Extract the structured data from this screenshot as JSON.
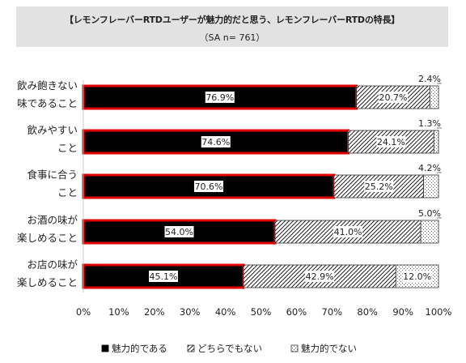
{
  "header": {
    "title": "【レモンフレーバーRTDユーザーが魅力的だと思う、レモンフレーバーRTDの特長】",
    "subtitle": "（SA n= 761）"
  },
  "chart_data": {
    "type": "bar",
    "orientation": "horizontal",
    "stacked": true,
    "title": "【レモンフレーバーRTDユーザーが魅力的だと思う、レモンフレーバーRTDの特長】",
    "subtitle": "（SA n= 761）",
    "categories": [
      [
        "飲み飽きない",
        "味であること"
      ],
      [
        "飲みやすい",
        "こと"
      ],
      [
        "食事に合う",
        "こと"
      ],
      [
        "お酒の味が",
        "楽しめること"
      ],
      [
        "お店の味が",
        "楽しめること"
      ]
    ],
    "series": [
      {
        "name": "魅力的である",
        "values": [
          76.9,
          74.6,
          70.6,
          54.0,
          45.1
        ],
        "labels": [
          "76.9%",
          "74.6%",
          "70.6%",
          "54.0%",
          "45.1%"
        ],
        "color": "#000000",
        "highlight": "#e00000",
        "pattern": "solid"
      },
      {
        "name": "どちらでもない",
        "values": [
          20.7,
          24.1,
          25.2,
          41.0,
          42.9
        ],
        "labels": [
          "20.7%",
          "24.1%",
          "25.2%",
          "41.0%",
          "42.9%"
        ],
        "color": "#333333",
        "pattern": "diagonal"
      },
      {
        "name": "魅力的でない",
        "values": [
          2.4,
          1.3,
          4.2,
          5.0,
          12.0
        ],
        "labels": [
          "2.4%",
          "1.3%",
          "4.2%",
          "5.0%",
          "12.0%"
        ],
        "color": "#888888",
        "pattern": "dots"
      }
    ],
    "xlim": [
      0,
      100
    ],
    "xticks": [
      "0%",
      "10%",
      "20%",
      "30%",
      "40%",
      "50%",
      "60%",
      "70%",
      "80%",
      "90%",
      "100%"
    ],
    "grid": false,
    "legend_position": "bottom"
  }
}
